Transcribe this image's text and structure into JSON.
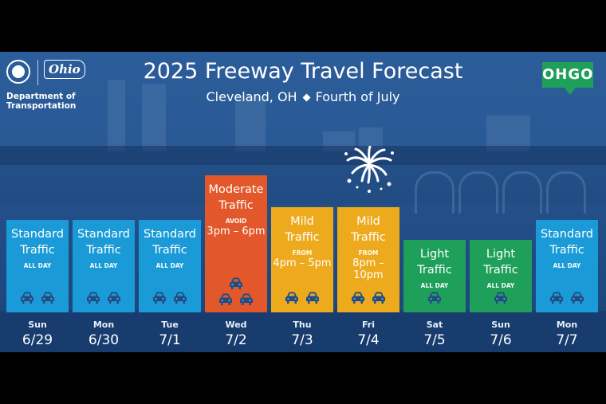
{
  "header": {
    "title": "2025 Freeway Travel Forecast",
    "subtitle_location": "Cleveland, OH",
    "subtitle_event": "Fourth of July",
    "logo": {
      "agency_script": "Ohio",
      "agency_line1": "Department of",
      "agency_line2": "Transportation"
    },
    "badge": "OHGO"
  },
  "colors": {
    "standard": "#1a9bd7",
    "moderate": "#e2582a",
    "mild": "#eeaa1d",
    "light": "#1fa05a",
    "car": "#1e4c86",
    "background": "#2a5a96"
  },
  "days": [
    {
      "dow": "Sun",
      "date": "6/29",
      "level": "Standard",
      "level2": "Traffic",
      "qualifier": "ALL DAY",
      "time": "",
      "type": "standard",
      "cars": 2
    },
    {
      "dow": "Mon",
      "date": "6/30",
      "level": "Standard",
      "level2": "Traffic",
      "qualifier": "ALL DAY",
      "time": "",
      "type": "standard",
      "cars": 2
    },
    {
      "dow": "Tue",
      "date": "7/1",
      "level": "Standard",
      "level2": "Traffic",
      "qualifier": "ALL DAY",
      "time": "",
      "type": "standard",
      "cars": 2
    },
    {
      "dow": "Wed",
      "date": "7/2",
      "level": "Moderate",
      "level2": "Traffic",
      "qualifier": "AVOID",
      "time": "3pm – 6pm",
      "type": "moderate",
      "cars": 3
    },
    {
      "dow": "Thu",
      "date": "7/3",
      "level": "Mild",
      "level2": "Traffic",
      "qualifier": "FROM",
      "time": "4pm – 5pm",
      "type": "mild",
      "cars": 2
    },
    {
      "dow": "Fri",
      "date": "7/4",
      "level": "Mild",
      "level2": "Traffic",
      "qualifier": "FROM",
      "time": "8pm – 10pm",
      "type": "mild",
      "cars": 2
    },
    {
      "dow": "Sat",
      "date": "7/5",
      "level": "Light",
      "level2": "Traffic",
      "qualifier": "ALL DAY",
      "time": "",
      "type": "light",
      "cars": 1
    },
    {
      "dow": "Sun",
      "date": "7/6",
      "level": "Light",
      "level2": "Traffic",
      "qualifier": "ALL DAY",
      "time": "",
      "type": "light",
      "cars": 1
    },
    {
      "dow": "Mon",
      "date": "7/7",
      "level": "Standard",
      "level2": "Traffic",
      "qualifier": "ALL DAY",
      "time": "",
      "type": "standard",
      "cars": 2
    }
  ]
}
